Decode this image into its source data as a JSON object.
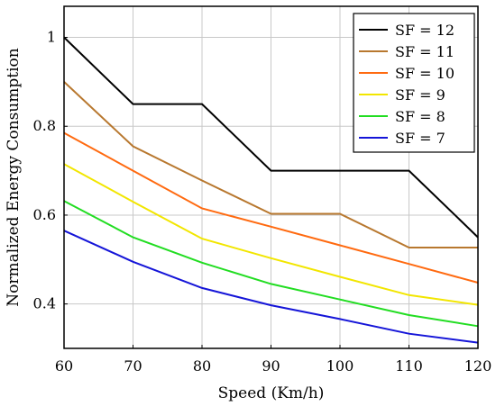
{
  "chart_data": {
    "type": "line",
    "title": "",
    "xlabel": "Speed (Km/h)",
    "ylabel": "Normalized Energy Consumption",
    "x": [
      60,
      70,
      80,
      90,
      100,
      110,
      120
    ],
    "xlim": [
      60,
      120
    ],
    "ylim": [
      0.3,
      1.07
    ],
    "xticks": [
      "60",
      "70",
      "80",
      "90",
      "100",
      "110",
      "120"
    ],
    "yticks": [
      "0.4",
      "0.6",
      "0.8",
      "1"
    ],
    "grid": true,
    "legend_position": "top-right",
    "series": [
      {
        "name": "SF = 12",
        "color": "#000000",
        "values": [
          1.0,
          0.85,
          0.85,
          0.7,
          0.7,
          0.7,
          0.55
        ]
      },
      {
        "name": "SF = 11",
        "color": "#b8782f",
        "values": [
          0.9,
          0.755,
          0.678,
          0.603,
          0.603,
          0.527,
          0.527
        ]
      },
      {
        "name": "SF = 10",
        "color": "#ff6a10",
        "values": [
          0.785,
          0.7,
          0.615,
          0.574,
          0.532,
          0.49,
          0.448
        ]
      },
      {
        "name": "SF = 9",
        "color": "#f2e600",
        "values": [
          0.715,
          0.63,
          0.547,
          0.503,
          0.461,
          0.42,
          0.398
        ]
      },
      {
        "name": "SF = 8",
        "color": "#22dd22",
        "values": [
          0.632,
          0.55,
          0.493,
          0.445,
          0.41,
          0.375,
          0.35
        ]
      },
      {
        "name": "SF = 7",
        "color": "#1515d8",
        "values": [
          0.565,
          0.495,
          0.436,
          0.397,
          0.366,
          0.333,
          0.313
        ]
      }
    ]
  }
}
